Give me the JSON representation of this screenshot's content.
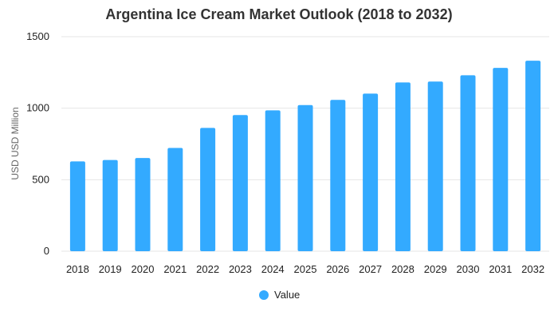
{
  "chart_data": {
    "type": "bar",
    "title": "Argentina Ice Cream Market Outlook (2018 to 2032)",
    "xlabel": "",
    "ylabel": "USD USD Million",
    "categories": [
      "2018",
      "2019",
      "2020",
      "2021",
      "2022",
      "2023",
      "2024",
      "2025",
      "2026",
      "2027",
      "2028",
      "2029",
      "2030",
      "2031",
      "2032"
    ],
    "series": [
      {
        "name": "Value",
        "values": [
          628,
          638,
          652,
          722,
          862,
          952,
          985,
          1022,
          1058,
          1102,
          1180,
          1186,
          1230,
          1282,
          1332
        ]
      }
    ],
    "ylim": [
      0,
      1500
    ],
    "yticks": [
      0,
      500,
      1000,
      1500
    ],
    "grid": true,
    "legend_position": "bottom-center",
    "colors": {
      "bar": "#33aaff",
      "grid": "#e6e6e6"
    }
  }
}
